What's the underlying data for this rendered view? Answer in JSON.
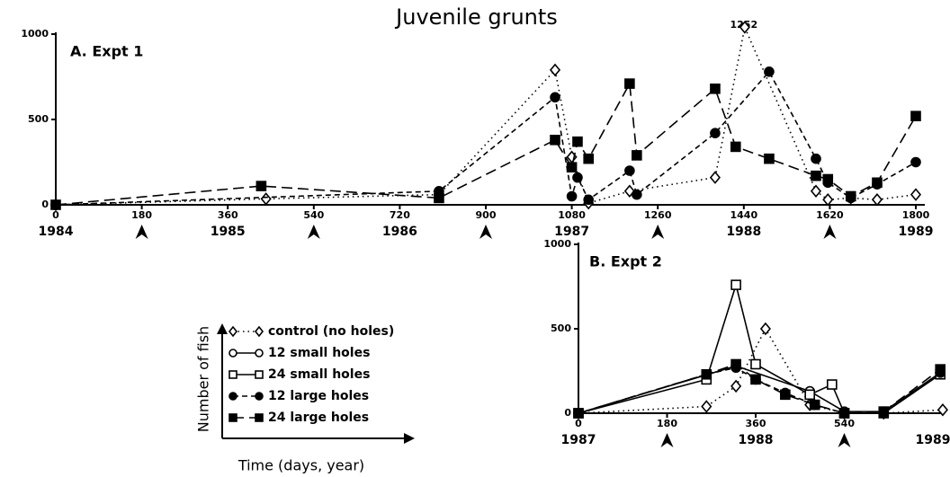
{
  "title": "Juvenile grunts",
  "legend": {
    "y_label": "Number of fish",
    "x_label": "Time (days, year)"
  },
  "chart_data": [
    {
      "type": "line",
      "panel_label": "A. Expt 1",
      "color": "#000000",
      "xlim": [
        0,
        1800
      ],
      "ylim": [
        0,
        1000
      ],
      "xticks": [
        0,
        180,
        360,
        540,
        720,
        900,
        1080,
        1260,
        1440,
        1620,
        1800
      ],
      "yticks": [
        0,
        500,
        1000
      ],
      "year_ticks": [
        {
          "value": 0,
          "label": "1984"
        },
        {
          "value": 360,
          "label": "1985"
        },
        {
          "value": 720,
          "label": "1986"
        },
        {
          "value": 1080,
          "label": "1987"
        },
        {
          "value": 1440,
          "label": "1988"
        },
        {
          "value": 1800,
          "label": "1989"
        }
      ],
      "arrows": [
        180,
        540,
        900,
        1260,
        1620
      ],
      "annotations": [
        {
          "x": 1440,
          "text": "1252"
        }
      ],
      "series": [
        {
          "name": "control (no holes)",
          "marker": "diamond",
          "filled": false,
          "dash": "dotted",
          "x": [
            0,
            440,
            802,
            1045,
            1080,
            1115,
            1201,
            1380,
            1442,
            1591,
            1616,
            1664,
            1719,
            1800
          ],
          "values": [
            0,
            35,
            60,
            790,
            280,
            10,
            80,
            160,
            1040,
            80,
            30,
            40,
            30,
            60
          ]
        },
        {
          "name": "12 large holes",
          "marker": "circle",
          "filled": true,
          "dash": "short",
          "x": [
            0,
            802,
            1045,
            1080,
            1092,
            1115,
            1201,
            1216,
            1380,
            1493,
            1591,
            1616,
            1664,
            1719,
            1800
          ],
          "values": [
            0,
            80,
            630,
            50,
            160,
            30,
            200,
            60,
            420,
            780,
            270,
            130,
            40,
            120,
            250
          ]
        },
        {
          "name": "24 large holes",
          "marker": "square",
          "filled": true,
          "dash": "long",
          "x": [
            0,
            430,
            802,
            1045,
            1080,
            1092,
            1115,
            1201,
            1216,
            1380,
            1423,
            1493,
            1591,
            1616,
            1664,
            1719,
            1800
          ],
          "values": [
            0,
            110,
            40,
            380,
            220,
            370,
            270,
            710,
            290,
            680,
            340,
            270,
            170,
            150,
            50,
            130,
            520
          ]
        }
      ]
    },
    {
      "type": "line",
      "panel_label": "B. Expt 2",
      "color": "#000000",
      "xlim": [
        0,
        720
      ],
      "ylim": [
        0,
        1000
      ],
      "xticks": [
        0,
        180,
        360,
        540
      ],
      "yticks": [
        0,
        500,
        1000
      ],
      "year_ticks": [
        {
          "value": 0,
          "label": "1987"
        },
        {
          "value": 360,
          "label": "1988"
        },
        {
          "value": 720,
          "label": "1989"
        }
      ],
      "arrows": [
        180,
        540
      ],
      "series": [
        {
          "name": "control (no holes)",
          "marker": "diamond",
          "filled": false,
          "dash": "dotted",
          "x": [
            0,
            260,
            320,
            380,
            470,
            540,
            620,
            740
          ],
          "values": [
            0,
            40,
            160,
            500,
            50,
            0,
            0,
            20
          ]
        },
        {
          "name": "12 small holes",
          "marker": "circle",
          "filled": false,
          "dash": "solid",
          "x": [
            0,
            320,
            470,
            540,
            620,
            735
          ],
          "values": [
            0,
            280,
            130,
            10,
            10,
            240
          ]
        },
        {
          "name": "24 small holes",
          "marker": "square",
          "filled": false,
          "dash": "solid",
          "x": [
            0,
            260,
            320,
            360,
            470,
            515,
            540,
            620,
            735
          ],
          "values": [
            0,
            200,
            760,
            290,
            110,
            170,
            0,
            0,
            230
          ]
        },
        {
          "name": "12 large holes",
          "marker": "circle",
          "filled": true,
          "dash": "short",
          "x": [
            0,
            260,
            320,
            360,
            420,
            480,
            540,
            620,
            735
          ],
          "values": [
            0,
            230,
            270,
            200,
            120,
            50,
            0,
            0,
            240
          ]
        },
        {
          "name": "24 large holes",
          "marker": "square",
          "filled": true,
          "dash": "long",
          "x": [
            0,
            260,
            320,
            360,
            420,
            480,
            540,
            620,
            735
          ],
          "values": [
            0,
            230,
            290,
            200,
            110,
            50,
            0,
            10,
            260
          ]
        }
      ]
    }
  ]
}
